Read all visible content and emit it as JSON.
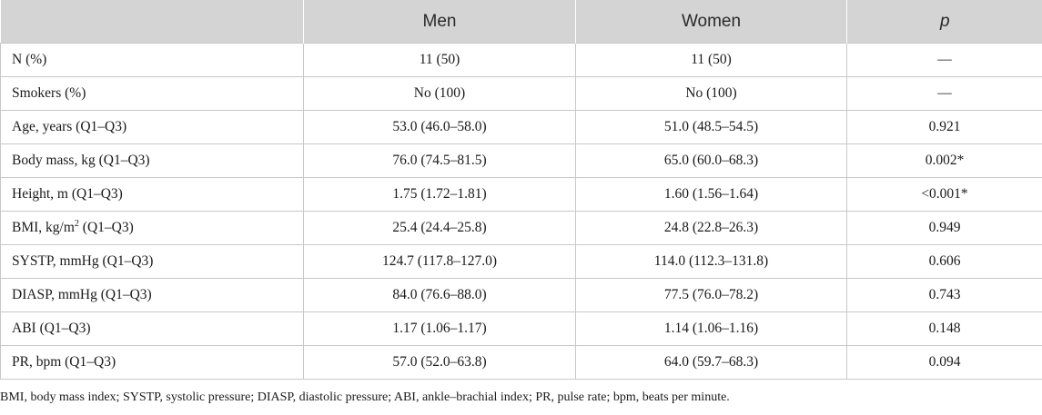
{
  "table": {
    "headers": [
      "",
      "Men",
      "Women",
      "p"
    ],
    "rows": [
      {
        "label": "N (%)",
        "men": "11 (50)",
        "women": "11 (50)",
        "p": "—"
      },
      {
        "label": "Smokers (%)",
        "men": "No (100)",
        "women": "No (100)",
        "p": "—"
      },
      {
        "label": "Age, years (Q1–Q3)",
        "men": "53.0 (46.0–58.0)",
        "women": "51.0 (48.5–54.5)",
        "p": "0.921"
      },
      {
        "label": "Body mass, kg (Q1–Q3)",
        "men": "76.0 (74.5–81.5)",
        "women": "65.0 (60.0–68.3)",
        "p": "0.002*"
      },
      {
        "label": "Height, m (Q1–Q3)",
        "men": "1.75 (1.72–1.81)",
        "women": "1.60 (1.56–1.64)",
        "p": "<0.001*"
      },
      {
        "label": "BMI, kg/m",
        "label_sup": "2",
        "label_suffix": " (Q1–Q3)",
        "men": "25.4 (24.4–25.8)",
        "women": "24.8 (22.8–26.3)",
        "p": "0.949"
      },
      {
        "label": "SYSTP, mmHg (Q1–Q3)",
        "men": "124.7 (117.8–127.0)",
        "women": "114.0 (112.3–131.8)",
        "p": "0.606"
      },
      {
        "label": "DIASP, mmHg (Q1–Q3)",
        "men": "84.0 (76.6–88.0)",
        "women": "77.5 (76.0–78.2)",
        "p": "0.743"
      },
      {
        "label": "ABI (Q1–Q3)",
        "men": "1.17 (1.06–1.17)",
        "women": "1.14 (1.06–1.16)",
        "p": "0.148"
      },
      {
        "label": "PR, bpm (Q1–Q3)",
        "men": "57.0 (52.0–63.8)",
        "women": "64.0 (59.7–68.3)",
        "p": "0.094"
      }
    ]
  },
  "footnote": "BMI, body mass index; SYSTP, systolic pressure; DIASP, diastolic pressure; ABI, ankle–brachial index; PR, pulse rate; bpm, beats per minute."
}
